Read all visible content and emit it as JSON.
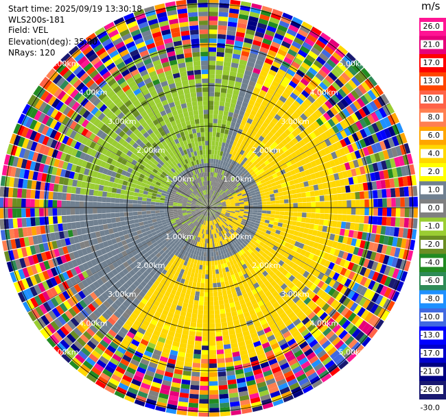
{
  "header": {
    "start_time": "Start time: 2025/09/19 13:30:18",
    "instrument": "WLS200s-181",
    "field": "Field: VEL",
    "elevation": "Elevation(deg): 35.00",
    "nrays": "NRays: 120"
  },
  "colorbar": {
    "unit": "m/s",
    "ticks": [
      "26.0",
      "21.0",
      "17.0",
      "13.0",
      "10.0",
      "8.0",
      "6.0",
      "4.0",
      "2.0",
      "1.0",
      "0.0",
      "-1.0",
      "-2.0",
      "-4.0",
      "-6.0",
      "-8.0",
      "-10.0",
      "-13.0",
      "-17.0",
      "-21.0",
      "-26.0",
      "-30.0"
    ],
    "colors": [
      "#ff1493",
      "#e6007a",
      "#ff0000",
      "#ff4500",
      "#ff6347",
      "#ff7f50",
      "#ffa500",
      "#ffd700",
      "#ffff00",
      "#708090",
      "#808080",
      "#9acd32",
      "#6b8e23",
      "#228b22",
      "#2e8b57",
      "#1e90ff",
      "#4169e1",
      "#0000ff",
      "#0000cd",
      "#000080",
      "#191970"
    ]
  },
  "chart_data": {
    "type": "heatmap",
    "projection": "PPI polar",
    "range_rings_km": [
      1,
      2,
      3,
      4,
      5
    ],
    "ring_labels": [
      "1.00km",
      "2.00km",
      "3.00km",
      "4.00km",
      "5.00km"
    ],
    "max_range_km": 5.2,
    "nrays": 120,
    "grid": true,
    "regions": [
      {
        "description": "near-zero velocity gray core",
        "velocity_ms": 0.0
      },
      {
        "description": "receding yellow band east/south-east",
        "velocity_ms": 3.0
      },
      {
        "description": "approaching green band north-west",
        "velocity_ms": -1.5
      },
      {
        "description": "noisy folded outer ring",
        "velocity_ms": "mixed"
      }
    ]
  }
}
